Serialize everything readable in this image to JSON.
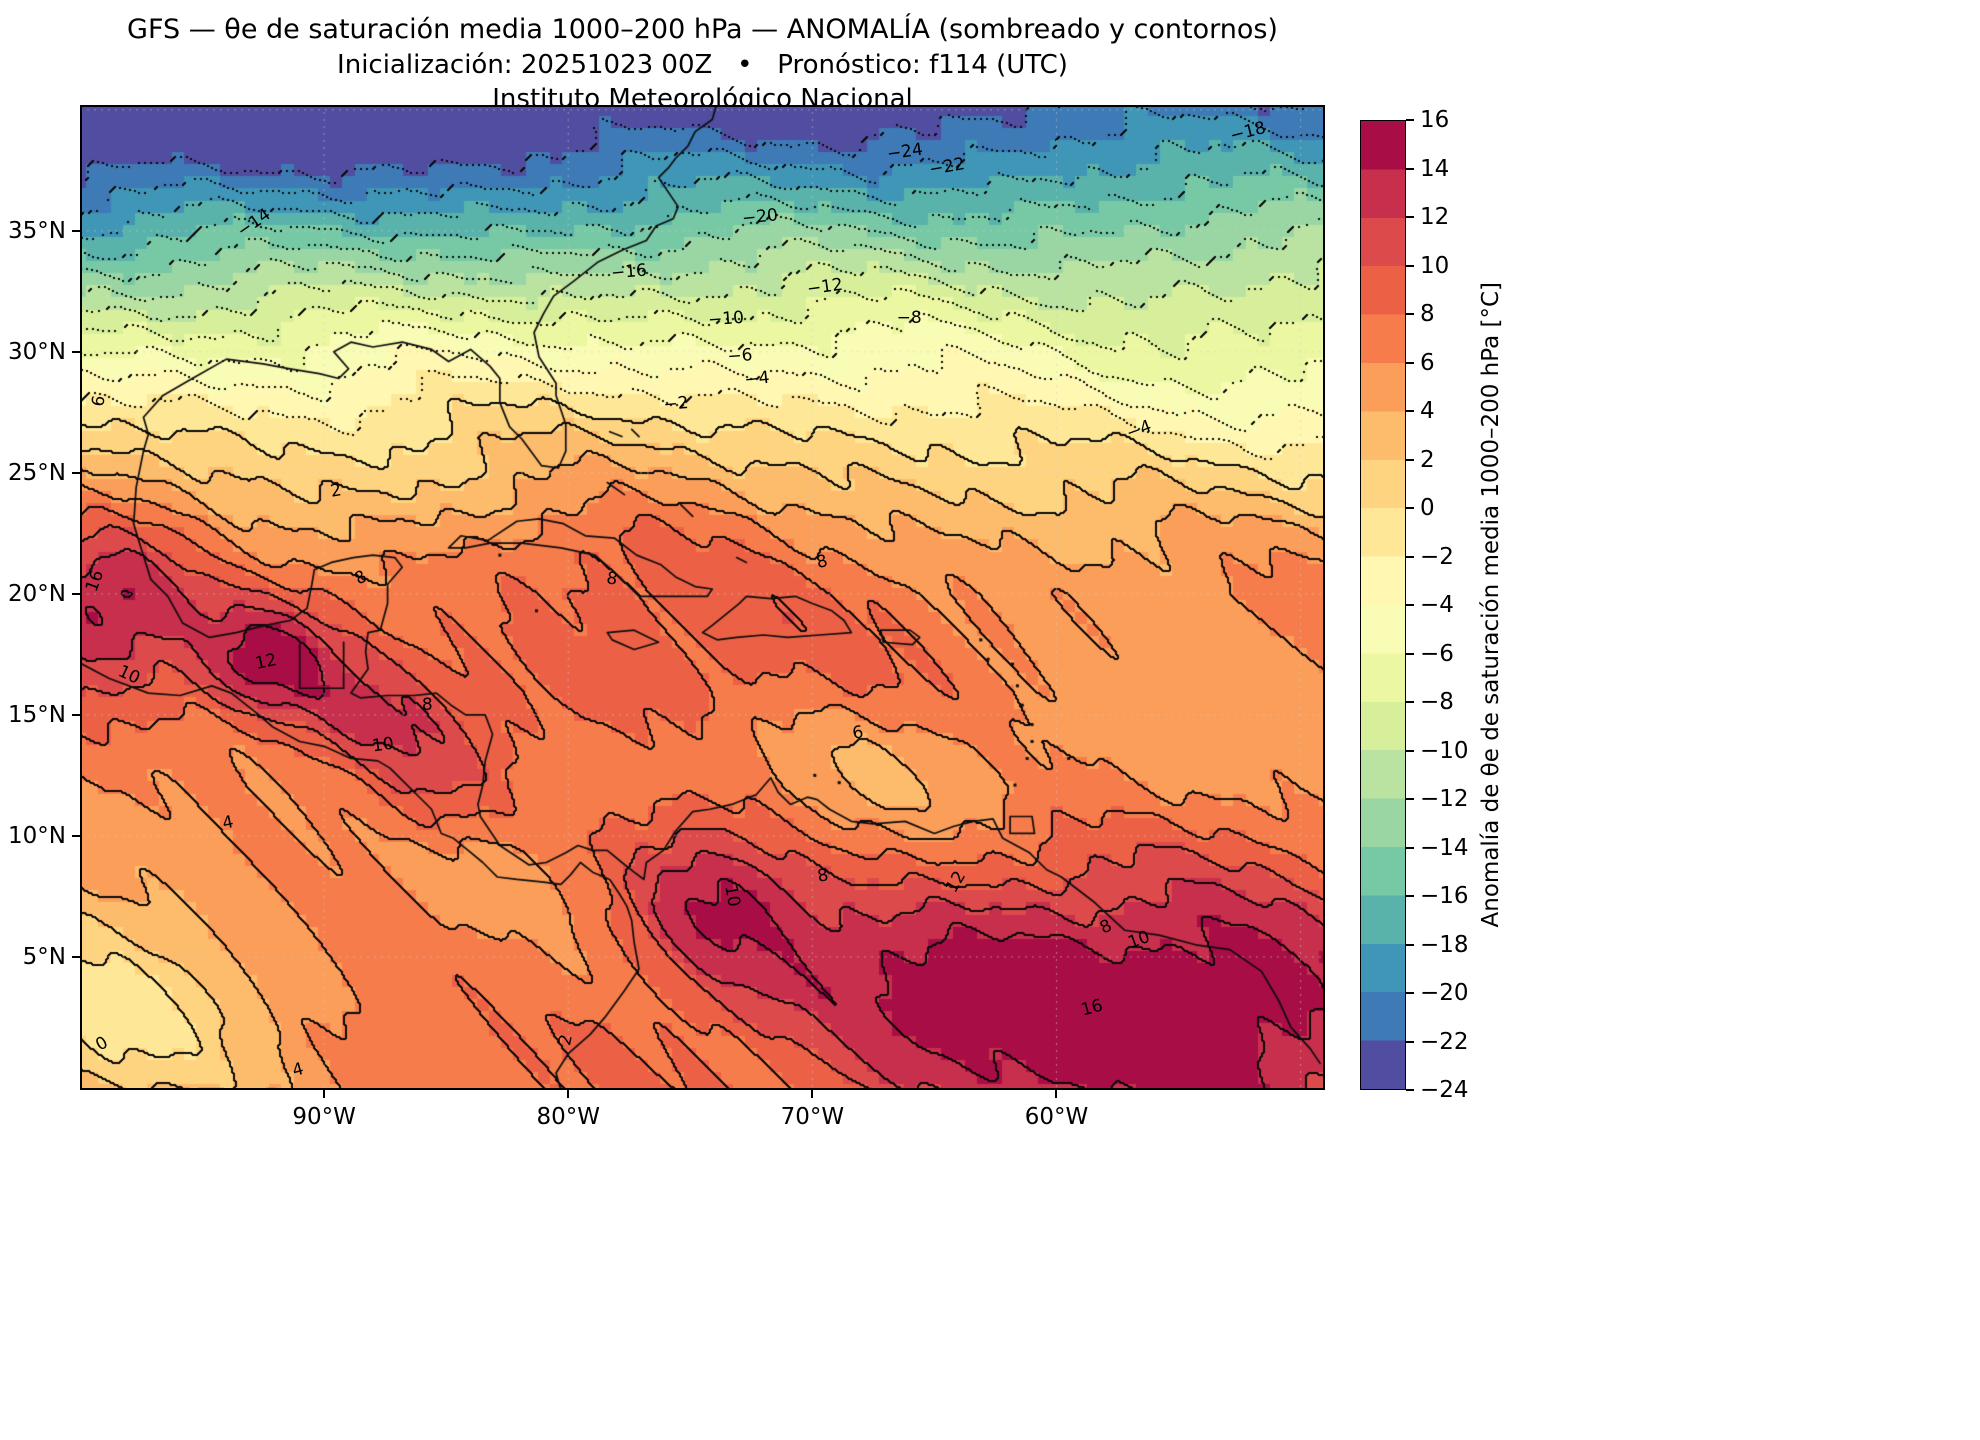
{
  "title": {
    "line1": "GFS — θe de saturación media 1000–200 hPa — ANOMALÍA (sombreado y contornos)",
    "line2": "Inicialización: 20251023 00Z   •   Pronóstico: f114 (UTC)",
    "line3": "Instituto Meteorológico Nacional"
  },
  "axes": {
    "lat_ticks": [
      {
        "label": "35°N",
        "value": 35
      },
      {
        "label": "30°N",
        "value": 30
      },
      {
        "label": "25°N",
        "value": 25
      },
      {
        "label": "20°N",
        "value": 20
      },
      {
        "label": "15°N",
        "value": 15
      },
      {
        "label": "10°N",
        "value": 10
      },
      {
        "label": "5°N",
        "value": 5
      }
    ],
    "lon_ticks": [
      {
        "label": "90°W",
        "value": -90
      },
      {
        "label": "80°W",
        "value": -80
      },
      {
        "label": "70°W",
        "value": -70
      },
      {
        "label": "60°W",
        "value": -60
      }
    ]
  },
  "colorbar": {
    "label": "Anomalía de θe de saturación media 1000–200 hPa [°C]",
    "min": -24,
    "max": 16,
    "step": 2,
    "tick_labels": [
      "16",
      "14",
      "12",
      "10",
      "8",
      "6",
      "4",
      "2",
      "0",
      "−2",
      "−4",
      "−6",
      "−8",
      "−10",
      "−12",
      "−14",
      "−16",
      "−18",
      "−20",
      "−22",
      "−24"
    ],
    "colors": [
      "#514da0",
      "#3d7ab6",
      "#3f96b7",
      "#59b3ab",
      "#77c9a5",
      "#9ad6a4",
      "#bae3a1",
      "#d7ef9b",
      "#ecf7a2",
      "#f9fcb5",
      "#fff7b2",
      "#fee898",
      "#fed481",
      "#fdbb6c",
      "#fb9e5a",
      "#f67d4b",
      "#ec6146",
      "#dd4a4c",
      "#c72f4c",
      "#a80d45"
    ]
  },
  "chart_data": {
    "type": "contour",
    "model": "GFS",
    "variable": "Anomalía de θe de saturación media 1000–200 hPa",
    "units": "°C",
    "init": "20251023 00Z",
    "forecast": "f114 (UTC)",
    "institution": "Instituto Meteorológico Nacional",
    "domain": {
      "lon_min": -100,
      "lon_max": -49,
      "lat_min": -0.5,
      "lat_max": 40.2
    },
    "contour_interval": 2,
    "level_min": -24,
    "level_max": 16,
    "shading_block_deg": 0.5,
    "negative_contours_dotted": true,
    "field_model": {
      "profile": [
        [
          -1,
          7.2
        ],
        [
          4,
          6.6
        ],
        [
          8,
          6.0
        ],
        [
          12,
          5.6
        ],
        [
          16,
          6.6
        ],
        [
          20,
          6.2
        ],
        [
          23,
          4.5
        ],
        [
          25,
          2.6
        ],
        [
          26.5,
          0.6
        ],
        [
          28,
          -2
        ],
        [
          29.5,
          -5
        ],
        [
          31,
          -8
        ],
        [
          32.5,
          -11.5
        ],
        [
          34,
          -15
        ],
        [
          35.5,
          -18.5
        ],
        [
          37,
          -22
        ],
        [
          38.5,
          -25
        ],
        [
          40.5,
          -28.5
        ]
      ],
      "tilt": {
        "lat0": 24,
        "span": 16,
        "coef": 0.14
      },
      "bumps": [
        [
          -99,
          19.5,
          9,
          2.8,
          2.6
        ],
        [
          -92.5,
          17.2,
          8,
          2.2,
          1.8
        ],
        [
          -88.5,
          14.5,
          5,
          2.5,
          2.0
        ],
        [
          -85.5,
          12.0,
          4,
          2.0,
          1.8
        ],
        [
          -75,
          17.5,
          3,
          5.5,
          2.8
        ],
        [
          -79.5,
          21.8,
          2.5,
          4.5,
          2.0
        ],
        [
          -74,
          7.5,
          6,
          2.8,
          2.8
        ],
        [
          -63,
          4,
          8,
          7.0,
          4.0
        ],
        [
          -52,
          2,
          7,
          5.5,
          4.5
        ],
        [
          -99,
          2,
          -7,
          5.0,
          4.0
        ],
        [
          -53,
          28,
          -4,
          9.0,
          3.5
        ],
        [
          -68,
          12,
          -2,
          4.0,
          2.5
        ],
        [
          -91,
          24.5,
          -1.5,
          4.0,
          2.5
        ],
        [
          -57,
          14,
          -1.5,
          5.0,
          3.0
        ]
      ],
      "noise": [
        [
          0.9,
          0.3,
          0.45,
          1.0
        ],
        [
          0.6,
          0.55,
          0.8,
          0.0
        ],
        [
          0.4,
          1.7,
          1.3,
          2.1
        ],
        [
          0.25,
          3.1,
          2.7,
          0.7
        ]
      ]
    },
    "contour_labels": [
      {
        "text": "−24",
        "x": 66.3,
        "y": 4.8,
        "r": -8
      },
      {
        "text": "−22",
        "x": 69.6,
        "y": 6.3,
        "r": -10
      },
      {
        "text": "−20",
        "x": 54.6,
        "y": 11.4,
        "r": -6
      },
      {
        "text": "−18",
        "x": 93.8,
        "y": 2.7,
        "r": -14
      },
      {
        "text": "−16",
        "x": 44.1,
        "y": 17.0,
        "r": -5
      },
      {
        "text": "−14",
        "x": 14.0,
        "y": 12.0,
        "r": -35
      },
      {
        "text": "−12",
        "x": 59.8,
        "y": 18.5,
        "r": -8
      },
      {
        "text": "−10",
        "x": 51.9,
        "y": 21.7,
        "r": -4
      },
      {
        "text": "−8",
        "x": 66.6,
        "y": 21.6,
        "r": 0
      },
      {
        "text": "−6",
        "x": 53.0,
        "y": 25.5,
        "r": -4
      },
      {
        "text": "−4",
        "x": 54.4,
        "y": 27.8,
        "r": -6
      },
      {
        "text": "−4",
        "x": 85.1,
        "y": 33.0,
        "r": -20
      },
      {
        "text": "−2",
        "x": 47.9,
        "y": 30.4,
        "r": -5
      },
      {
        "text": "0",
        "x": 1.8,
        "y": 95.3,
        "r": -30
      },
      {
        "text": "2",
        "x": 20.6,
        "y": 39.2,
        "r": -10
      },
      {
        "text": "2",
        "x": 39.0,
        "y": 94.9,
        "r": -78
      },
      {
        "text": "4",
        "x": 11.9,
        "y": 72.9,
        "r": -12
      },
      {
        "text": "4",
        "x": 17.5,
        "y": 98.0,
        "r": -15
      },
      {
        "text": "6",
        "x": 1.5,
        "y": 30.1,
        "r": -80
      },
      {
        "text": "6",
        "x": 62.5,
        "y": 63.8,
        "r": -10
      },
      {
        "text": "8",
        "x": 22.6,
        "y": 48.0,
        "r": -30
      },
      {
        "text": "8",
        "x": 42.7,
        "y": 48.1,
        "r": 10
      },
      {
        "text": "8",
        "x": 59.6,
        "y": 46.4,
        "r": -15
      },
      {
        "text": "8",
        "x": 27.9,
        "y": 60.9,
        "r": 0
      },
      {
        "text": "8",
        "x": 59.7,
        "y": 78.3,
        "r": -10
      },
      {
        "text": "8",
        "x": 82.4,
        "y": 83.5,
        "r": -25
      },
      {
        "text": "10",
        "x": 3.9,
        "y": 57.9,
        "r": 25
      },
      {
        "text": "10",
        "x": 24.3,
        "y": 65.0,
        "r": -8
      },
      {
        "text": "10",
        "x": 52.4,
        "y": 80.3,
        "r": 80
      },
      {
        "text": "10",
        "x": 85.1,
        "y": 84.8,
        "r": -20
      },
      {
        "text": "12",
        "x": 14.9,
        "y": 56.5,
        "r": -12
      },
      {
        "text": "12",
        "x": 70.4,
        "y": 78.9,
        "r": -60
      },
      {
        "text": "16",
        "x": 1.2,
        "y": 48.3,
        "r": -70
      },
      {
        "text": "16",
        "x": 81.3,
        "y": 91.7,
        "r": -15
      }
    ]
  }
}
